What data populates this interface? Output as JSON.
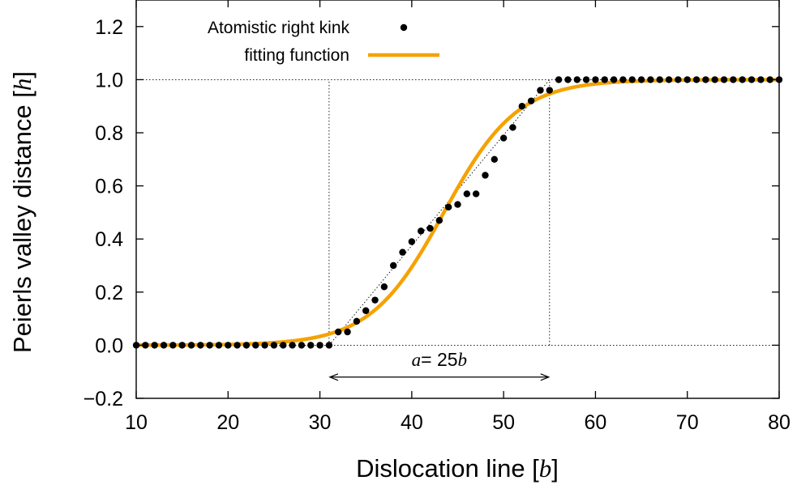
{
  "chart_data": {
    "type": "scatter",
    "xlabel": {
      "prefix": "Dislocation line [",
      "unit": "b",
      "suffix": "]"
    },
    "ylabel": {
      "prefix": "Peierls valley distance [",
      "unit": "h",
      "suffix": "]"
    },
    "xlim": [
      10,
      80
    ],
    "ylim": [
      -0.2,
      1.3
    ],
    "xticks": [
      10,
      20,
      30,
      40,
      50,
      60,
      70,
      80
    ],
    "yticks": [
      -0.2,
      0.0,
      0.2,
      0.4,
      0.6,
      0.8,
      1.0,
      1.2
    ],
    "ytick_labels": [
      "−0.2",
      "0.0",
      "0.2",
      "0.4",
      "0.6",
      "0.8",
      "1.0",
      "1.2"
    ],
    "grid": false,
    "legend_position": "top-left",
    "series": [
      {
        "name": "Atomistic right kink",
        "style": "points",
        "color": "#000000",
        "x": [
          10,
          11,
          12,
          13,
          14,
          15,
          16,
          17,
          18,
          19,
          20,
          21,
          22,
          23,
          24,
          25,
          26,
          27,
          28,
          29,
          30,
          31,
          32,
          33,
          34,
          35,
          36,
          37,
          38,
          39,
          40,
          41,
          42,
          43,
          44,
          45,
          46,
          47,
          48,
          49,
          50,
          51,
          52,
          53,
          54,
          55,
          56,
          57,
          58,
          59,
          60,
          61,
          62,
          63,
          64,
          65,
          66,
          67,
          68,
          69,
          70,
          71,
          72,
          73,
          74,
          75,
          76,
          77,
          78,
          79,
          80
        ],
        "y": [
          0,
          0,
          0,
          0,
          0,
          0,
          0,
          0,
          0,
          0,
          0,
          0,
          0,
          0,
          0,
          0,
          0,
          0,
          0,
          0,
          0,
          0,
          0.05,
          0.05,
          0.09,
          0.13,
          0.17,
          0.22,
          0.3,
          0.35,
          0.39,
          0.43,
          0.44,
          0.47,
          0.52,
          0.53,
          0.57,
          0.57,
          0.64,
          0.7,
          0.78,
          0.82,
          0.9,
          0.92,
          0.96,
          0.96,
          1,
          1,
          1,
          1,
          1,
          1,
          1,
          1,
          1,
          1,
          1,
          1,
          1,
          1,
          1,
          1,
          1,
          1,
          1,
          1,
          1,
          1,
          1,
          1,
          1
        ]
      },
      {
        "name": "fitting function",
        "style": "line",
        "color": "#f5a200",
        "function": "logistic",
        "center": 43.5,
        "scale": 4.0
      }
    ],
    "reference_lines": {
      "horizontal_y": [
        0.0,
        1.0
      ],
      "vertical_x": [
        31,
        55
      ],
      "diagonal": [
        [
          31,
          0.0
        ],
        [
          55,
          1.0
        ]
      ]
    },
    "annotation": {
      "label_var": "a",
      "label_eq": "= 25",
      "label_unit": "b",
      "x_from": 31,
      "x_to": 55,
      "y": -0.12
    }
  }
}
